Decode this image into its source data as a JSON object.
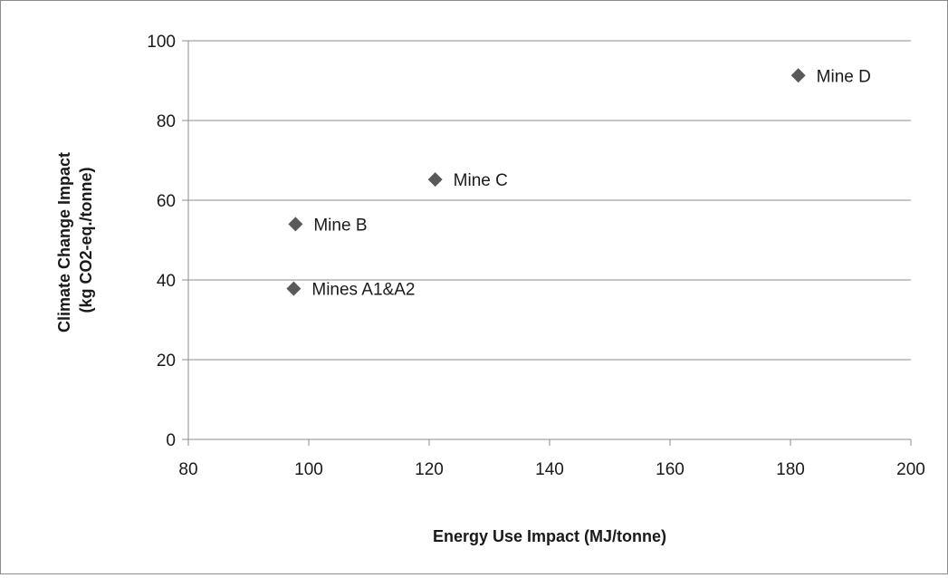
{
  "chart_data": {
    "type": "scatter",
    "title": "",
    "xlabel": "Energy Use Impact (MJ/tonne)",
    "ylabel_lines": [
      "Climate Change Impact",
      "(kg CO2-eq./tonne)"
    ],
    "xlim": [
      80,
      200
    ],
    "ylim": [
      0,
      100
    ],
    "x_ticks": [
      80,
      100,
      120,
      140,
      160,
      180,
      200
    ],
    "y_ticks": [
      0,
      20,
      40,
      60,
      80,
      100
    ],
    "horizontal_grid": true,
    "vertical_grid": false,
    "legend": "none",
    "marker": "diamond",
    "marker_color": "#595959",
    "points": [
      {
        "label": "Mines A1&A2",
        "x": 97.5,
        "y": 37.8
      },
      {
        "label": "Mine B",
        "x": 97.8,
        "y": 54
      },
      {
        "label": "Mine C",
        "x": 121,
        "y": 65.2
      },
      {
        "label": "Mine D",
        "x": 181.3,
        "y": 91.3
      }
    ]
  }
}
